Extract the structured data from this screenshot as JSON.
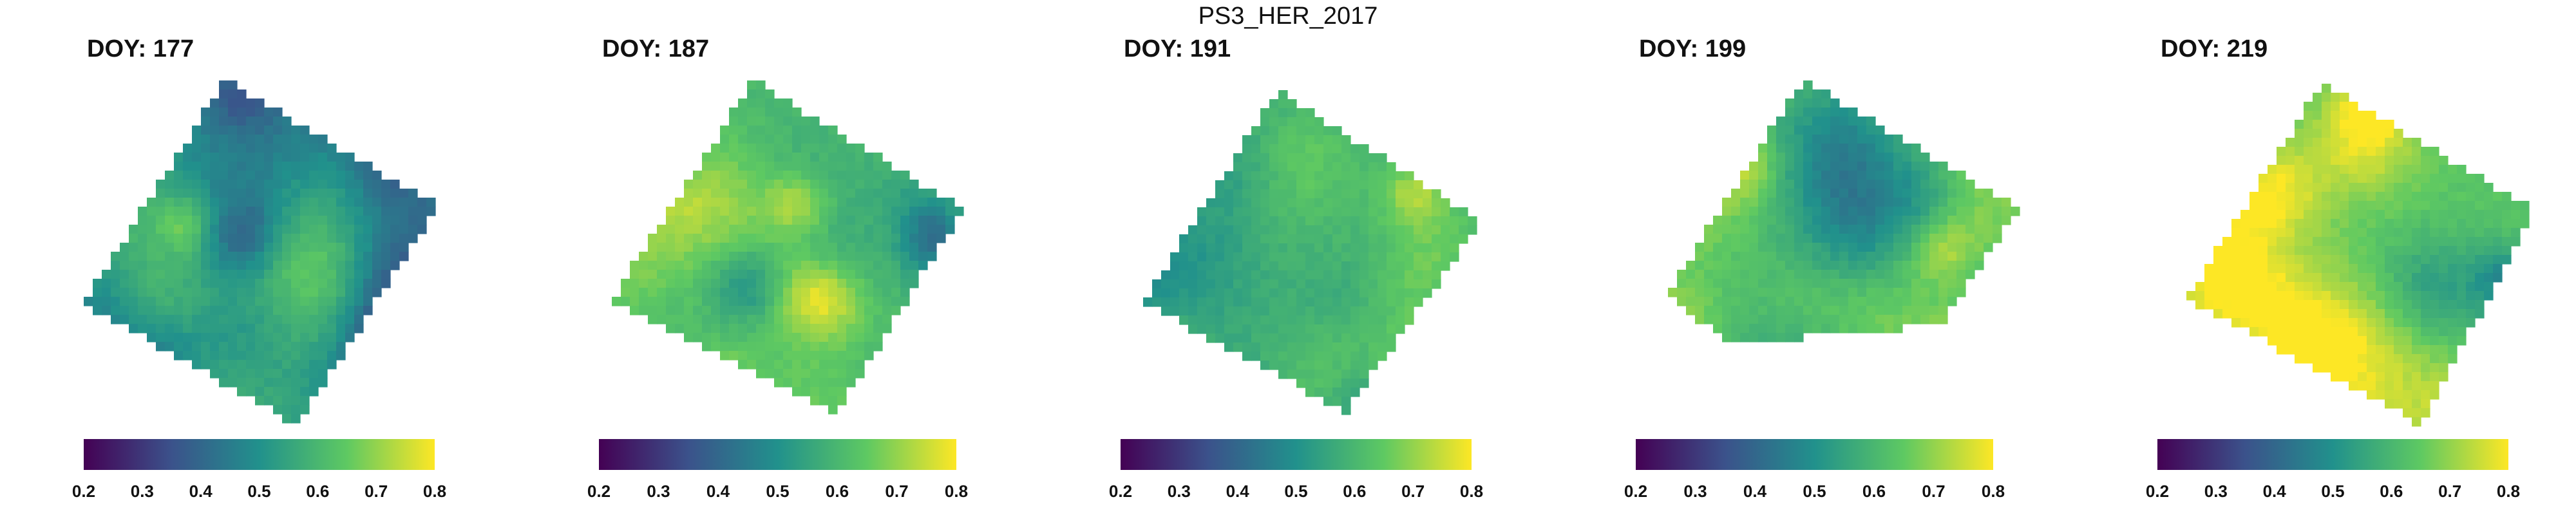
{
  "figure": {
    "title": "PS3_HER_2017"
  },
  "colorscale": {
    "name": "viridis",
    "stops": [
      "#440154",
      "#3b528b",
      "#21918c",
      "#5ec962",
      "#fde725"
    ],
    "min": 0.2,
    "max": 0.8
  },
  "chart_data": [
    {
      "type": "heatmap",
      "title": "DOY: 177",
      "doy": 177,
      "value_range": [
        0.2,
        0.8
      ],
      "approx_mean": 0.45,
      "colorbar_ticks": [
        "0.2",
        "0.3",
        "0.4",
        "0.5",
        "0.6",
        "0.7",
        "0.8"
      ],
      "grid": false
    },
    {
      "type": "heatmap",
      "title": "DOY: 187",
      "doy": 187,
      "value_range": [
        0.2,
        0.8
      ],
      "approx_mean": 0.6,
      "colorbar_ticks": [
        "0.2",
        "0.3",
        "0.4",
        "0.5",
        "0.6",
        "0.7",
        "0.8"
      ],
      "grid": false
    },
    {
      "type": "heatmap",
      "title": "DOY: 191",
      "doy": 191,
      "value_range": [
        0.2,
        0.8
      ],
      "approx_mean": 0.57,
      "colorbar_ticks": [
        "0.2",
        "0.3",
        "0.4",
        "0.5",
        "0.6",
        "0.7",
        "0.8"
      ],
      "grid": false
    },
    {
      "type": "heatmap",
      "title": "DOY: 199",
      "doy": 199,
      "value_range": [
        0.2,
        0.8
      ],
      "approx_mean": 0.62,
      "colorbar_ticks": [
        "0.2",
        "0.3",
        "0.4",
        "0.5",
        "0.6",
        "0.7",
        "0.8"
      ],
      "grid": false
    },
    {
      "type": "heatmap",
      "title": "DOY: 219",
      "doy": 219,
      "value_range": [
        0.2,
        0.8
      ],
      "approx_mean": 0.64,
      "colorbar_ticks": [
        "0.2",
        "0.3",
        "0.4",
        "0.5",
        "0.6",
        "0.7",
        "0.8"
      ],
      "grid": false
    }
  ]
}
